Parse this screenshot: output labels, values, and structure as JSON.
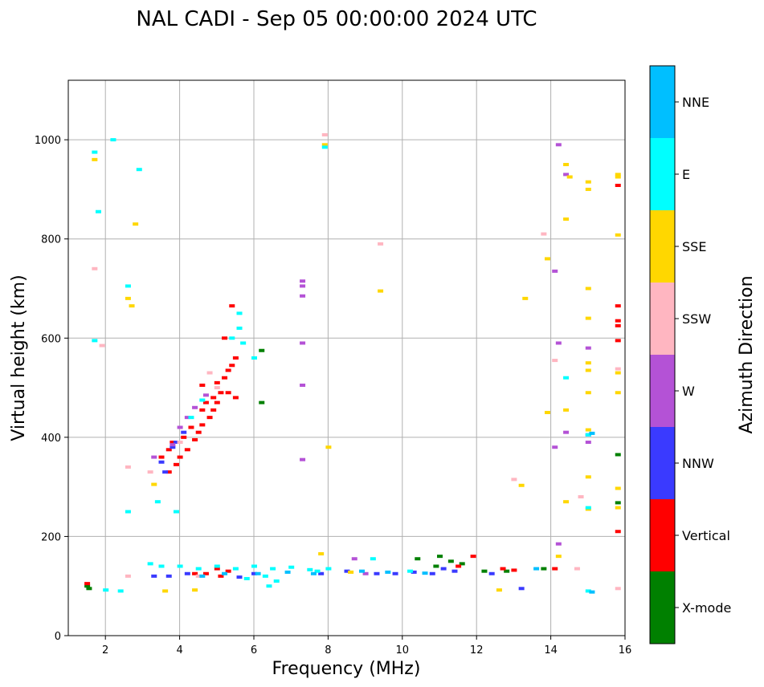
{
  "chart_data": {
    "type": "scatter",
    "title": "NAL CADI - Sep 05 00:00:00 2024 UTC",
    "xlabel": "Frequency (MHz)",
    "ylabel": "Virtual height (km)",
    "xlim": [
      1,
      16
    ],
    "ylim": [
      0,
      1120
    ],
    "xticks": [
      2,
      4,
      6,
      8,
      10,
      12,
      14,
      16
    ],
    "yticks": [
      0,
      200,
      400,
      600,
      800,
      1000
    ],
    "grid": true,
    "colorbar": {
      "label": "Azimuth Direction",
      "categories": [
        "X-mode",
        "Vertical",
        "NNW",
        "W",
        "SSW",
        "SSE",
        "E",
        "NNE"
      ],
      "colors": [
        "#008000",
        "#ff0000",
        "#3a3aff",
        "#b452d6",
        "#ffb6c1",
        "#ffd700",
        "#00ffff",
        "#00bfff"
      ]
    },
    "series": [
      {
        "name": "X-mode",
        "points": [
          [
            1.5,
            100
          ],
          [
            1.55,
            95
          ],
          [
            6.2,
            470
          ],
          [
            6.2,
            575
          ],
          [
            13.8,
            135
          ],
          [
            11.0,
            160
          ],
          [
            11.3,
            150
          ],
          [
            11.6,
            145
          ],
          [
            10.9,
            140
          ],
          [
            12.2,
            130
          ],
          [
            15.8,
            365
          ],
          [
            15.8,
            268
          ],
          [
            10.4,
            155
          ],
          [
            12.8,
            130
          ]
        ]
      },
      {
        "name": "Vertical",
        "points": [
          [
            3.7,
            330
          ],
          [
            3.9,
            345
          ],
          [
            4.0,
            360
          ],
          [
            4.2,
            375
          ],
          [
            4.4,
            395
          ],
          [
            4.5,
            410
          ],
          [
            4.6,
            425
          ],
          [
            4.8,
            440
          ],
          [
            4.9,
            455
          ],
          [
            5.0,
            470
          ],
          [
            5.1,
            490
          ],
          [
            5.2,
            520
          ],
          [
            5.3,
            535
          ],
          [
            5.4,
            545
          ],
          [
            5.5,
            560
          ],
          [
            5.2,
            600
          ],
          [
            5.4,
            665
          ],
          [
            4.6,
            505
          ],
          [
            4.9,
            480
          ],
          [
            3.5,
            360
          ],
          [
            3.7,
            375
          ],
          [
            3.8,
            390
          ],
          [
            4.1,
            400
          ],
          [
            4.3,
            420
          ],
          [
            4.6,
            455
          ],
          [
            4.7,
            470
          ],
          [
            5.0,
            510
          ],
          [
            5.3,
            490
          ],
          [
            5.5,
            480
          ],
          [
            1.5,
            105
          ],
          [
            4.4,
            125
          ],
          [
            4.7,
            125
          ],
          [
            5.0,
            135
          ],
          [
            5.3,
            130
          ],
          [
            5.1,
            120
          ],
          [
            11.9,
            160
          ],
          [
            11.5,
            140
          ],
          [
            14.1,
            135
          ],
          [
            15.8,
            665
          ],
          [
            15.8,
            635
          ],
          [
            15.8,
            625
          ],
          [
            15.8,
            595
          ],
          [
            15.8,
            908
          ],
          [
            15.8,
            210
          ],
          [
            12.7,
            135
          ],
          [
            13.0,
            132
          ]
        ]
      },
      {
        "name": "NNW",
        "points": [
          [
            3.6,
            330
          ],
          [
            3.8,
            380
          ],
          [
            3.9,
            390
          ],
          [
            4.1,
            410
          ],
          [
            3.5,
            350
          ],
          [
            6.0,
            125
          ],
          [
            7.8,
            125
          ],
          [
            8.5,
            130
          ],
          [
            9.3,
            125
          ],
          [
            9.8,
            125
          ],
          [
            10.3,
            128
          ],
          [
            10.8,
            125
          ],
          [
            11.1,
            135
          ],
          [
            11.4,
            130
          ],
          [
            13.2,
            95
          ],
          [
            12.4,
            125
          ],
          [
            3.3,
            120
          ],
          [
            3.7,
            120
          ],
          [
            4.2,
            125
          ],
          [
            5.6,
            118
          ],
          [
            15.0,
            405
          ]
        ]
      },
      {
        "name": "W",
        "points": [
          [
            3.8,
            385
          ],
          [
            4.0,
            420
          ],
          [
            4.2,
            440
          ],
          [
            4.4,
            460
          ],
          [
            4.7,
            485
          ],
          [
            7.3,
            715
          ],
          [
            7.3,
            705
          ],
          [
            7.3,
            685
          ],
          [
            7.3,
            590
          ],
          [
            7.3,
            505
          ],
          [
            7.3,
            355
          ],
          [
            14.2,
            990
          ],
          [
            14.4,
            930
          ],
          [
            14.1,
            380
          ],
          [
            14.2,
            590
          ],
          [
            14.1,
            735
          ],
          [
            15.0,
            580
          ],
          [
            15.0,
            390
          ],
          [
            14.4,
            410
          ],
          [
            9.0,
            125
          ],
          [
            8.7,
            155
          ],
          [
            3.3,
            360
          ],
          [
            14.2,
            185
          ]
        ]
      },
      {
        "name": "SSW",
        "points": [
          [
            1.7,
            740
          ],
          [
            1.9,
            585
          ],
          [
            2.6,
            340
          ],
          [
            3.2,
            330
          ],
          [
            4.0,
            390
          ],
          [
            4.8,
            530
          ],
          [
            5.0,
            500
          ],
          [
            7.9,
            1010
          ],
          [
            9.4,
            790
          ],
          [
            13.8,
            810
          ],
          [
            14.1,
            555
          ],
          [
            15.8,
            538
          ],
          [
            15.8,
            95
          ],
          [
            14.7,
            135
          ],
          [
            14.8,
            280
          ],
          [
            13.0,
            315
          ],
          [
            2.6,
            120
          ],
          [
            4.5,
            120
          ]
        ]
      },
      {
        "name": "SSE",
        "points": [
          [
            1.7,
            960
          ],
          [
            2.8,
            830
          ],
          [
            2.7,
            665
          ],
          [
            2.6,
            680
          ],
          [
            3.3,
            305
          ],
          [
            7.9,
            990
          ],
          [
            8.0,
            380
          ],
          [
            9.4,
            695
          ],
          [
            13.3,
            680
          ],
          [
            13.9,
            760
          ],
          [
            14.4,
            840
          ],
          [
            14.4,
            950
          ],
          [
            14.5,
            925
          ],
          [
            15.0,
            915
          ],
          [
            15.0,
            900
          ],
          [
            15.0,
            700
          ],
          [
            15.0,
            640
          ],
          [
            15.0,
            550
          ],
          [
            15.0,
            535
          ],
          [
            15.0,
            490
          ],
          [
            15.0,
            415
          ],
          [
            15.0,
            320
          ],
          [
            15.0,
            255
          ],
          [
            14.4,
            455
          ],
          [
            13.9,
            450
          ],
          [
            14.2,
            160
          ],
          [
            14.4,
            270
          ],
          [
            15.8,
            930
          ],
          [
            15.8,
            925
          ],
          [
            15.8,
            808
          ],
          [
            15.8,
            530
          ],
          [
            15.8,
            490
          ],
          [
            15.8,
            297
          ],
          [
            15.8,
            258
          ],
          [
            13.2,
            303
          ],
          [
            12.6,
            92
          ],
          [
            8.6,
            128
          ],
          [
            4.4,
            92
          ],
          [
            3.6,
            90
          ],
          [
            7.8,
            165
          ]
        ]
      },
      {
        "name": "E",
        "points": [
          [
            1.7,
            975
          ],
          [
            1.8,
            855
          ],
          [
            2.2,
            1000
          ],
          [
            2.9,
            940
          ],
          [
            2.6,
            705
          ],
          [
            1.7,
            595
          ],
          [
            2.6,
            250
          ],
          [
            3.4,
            270
          ],
          [
            3.9,
            250
          ],
          [
            4.3,
            440
          ],
          [
            4.6,
            475
          ],
          [
            5.4,
            600
          ],
          [
            5.6,
            620
          ],
          [
            5.6,
            650
          ],
          [
            5.7,
            590
          ],
          [
            6.0,
            560
          ],
          [
            3.2,
            145
          ],
          [
            3.5,
            140
          ],
          [
            4.0,
            140
          ],
          [
            4.5,
            135
          ],
          [
            5.0,
            140
          ],
          [
            5.5,
            135
          ],
          [
            6.0,
            140
          ],
          [
            6.5,
            135
          ],
          [
            7.0,
            138
          ],
          [
            7.5,
            133
          ],
          [
            8.0,
            135
          ],
          [
            7.7,
            130
          ],
          [
            6.3,
            120
          ],
          [
            5.8,
            115
          ],
          [
            6.6,
            110
          ],
          [
            6.4,
            100
          ],
          [
            7.9,
            985
          ],
          [
            9.2,
            155
          ],
          [
            10.2,
            130
          ],
          [
            14.4,
            520
          ],
          [
            15.0,
            405
          ],
          [
            15.0,
            258
          ],
          [
            15.0,
            90
          ],
          [
            2.0,
            92
          ],
          [
            2.4,
            90
          ]
        ]
      },
      {
        "name": "NNE",
        "points": [
          [
            4.6,
            120
          ],
          [
            5.2,
            125
          ],
          [
            6.1,
            125
          ],
          [
            6.9,
            128
          ],
          [
            7.6,
            125
          ],
          [
            8.9,
            130
          ],
          [
            9.6,
            128
          ],
          [
            10.6,
            126
          ],
          [
            15.1,
            408
          ],
          [
            15.1,
            88
          ],
          [
            13.6,
            135
          ]
        ]
      }
    ]
  }
}
